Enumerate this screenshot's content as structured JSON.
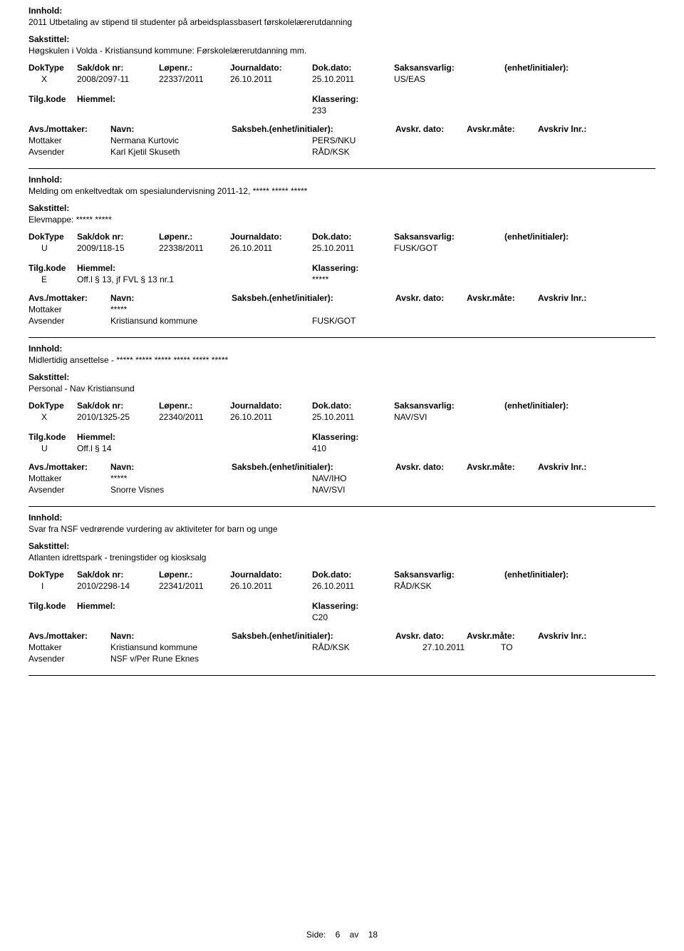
{
  "labels": {
    "innhold": "Innhold:",
    "sakstittel": "Sakstittel:",
    "doktype": "DokType",
    "sakdok": "Sak/dok nr:",
    "lopenr": "Løpenr.:",
    "journaldato": "Journaldato:",
    "dokdato": "Dok.dato:",
    "saksansvarlig": "Saksansvarlig:",
    "enhet": "(enhet/initialer):",
    "tilgkode": "Tilg.kode",
    "hjemmel": "Hiemmel:",
    "klassering": "Klassering:",
    "avsmottaker": "Avs./mottaker:",
    "navn": "Navn:",
    "saksbeh": "Saksbeh.(enhet/initialer):",
    "avskrdato": "Avskr. dato:",
    "avskrmaate": "Avskr.måte:",
    "avskrivlnr": "Avskriv lnr.:",
    "mottaker": "Mottaker",
    "avsender": "Avsender"
  },
  "records": [
    {
      "content": "2011 Utbetaling av stipend til studenter på arbeidsplassbasert førskolelærerutdanning",
      "caseTitle": "Høgskulen i Volda - Kristiansund kommune: Førskolelærerutdanning mm.",
      "doktype": "X",
      "sakdok": "2008/2097-11",
      "lopenr": "22337/2011",
      "journaldato": "26.10.2011",
      "dokdato": "25.10.2011",
      "saksansvarlig": "US/EAS",
      "tilgkode": "",
      "hjemmel": "",
      "klassering": "233",
      "parties": [
        {
          "role": "Mottaker",
          "name": "Nermana Kurtovic",
          "unit": "PERS/NKU",
          "date": "",
          "maate": ""
        },
        {
          "role": "Avsender",
          "name": "Karl Kjetil Skuseth",
          "unit": "RÅD/KSK",
          "date": "",
          "maate": ""
        }
      ]
    },
    {
      "content": "Melding om enkeltvedtak om spesialundervisning 2011-12,  ***** ***** *****",
      "caseTitle": "Elevmappe: ***** *****",
      "doktype": "U",
      "sakdok": "2009/118-15",
      "lopenr": "22338/2011",
      "journaldato": "26.10.2011",
      "dokdato": "25.10.2011",
      "saksansvarlig": "FUSK/GOT",
      "tilgkode": "E",
      "hjemmel": "Off.l § 13, jf FVL § 13 nr.1",
      "klassering": "*****",
      "parties": [
        {
          "role": "Mottaker",
          "name": "*****",
          "unit": "",
          "date": "",
          "maate": ""
        },
        {
          "role": "Avsender",
          "name": "Kristiansund kommune",
          "unit": "FUSK/GOT",
          "date": "",
          "maate": ""
        }
      ]
    },
    {
      "content": "Midlertidig ansettelse - ***** ***** ***** ***** ***** *****",
      "caseTitle": "Personal - Nav Kristiansund",
      "doktype": "X",
      "sakdok": "2010/1325-25",
      "lopenr": "22340/2011",
      "journaldato": "26.10.2011",
      "dokdato": "25.10.2011",
      "saksansvarlig": "NAV/SVI",
      "tilgkode": "U",
      "hjemmel": "Off.l § 14",
      "klassering": "410",
      "parties": [
        {
          "role": "Mottaker",
          "name": "*****",
          "unit": "NAV/IHO",
          "date": "",
          "maate": ""
        },
        {
          "role": "Avsender",
          "name": "Snorre Visnes",
          "unit": "NAV/SVI",
          "date": "",
          "maate": ""
        }
      ]
    },
    {
      "content": "Svar fra NSF vedrørende vurdering av aktiviteter for barn og unge",
      "caseTitle": "Atlanten idrettspark - treningstider og kiosksalg",
      "doktype": "I",
      "sakdok": "2010/2298-14",
      "lopenr": "22341/2011",
      "journaldato": "26.10.2011",
      "dokdato": "26.10.2011",
      "saksansvarlig": "RÅD/KSK",
      "tilgkode": "",
      "hjemmel": "",
      "klassering": "C20",
      "parties": [
        {
          "role": "Mottaker",
          "name": "Kristiansund kommune",
          "unit": "RÅD/KSK",
          "date": "27.10.2011",
          "maate": "TO"
        },
        {
          "role": "Avsender",
          "name": "NSF v/Per Rune Eknes",
          "unit": "",
          "date": "",
          "maate": ""
        }
      ]
    }
  ],
  "footer": {
    "label": "Side:",
    "page": "6",
    "sep": "av",
    "total": "18"
  }
}
